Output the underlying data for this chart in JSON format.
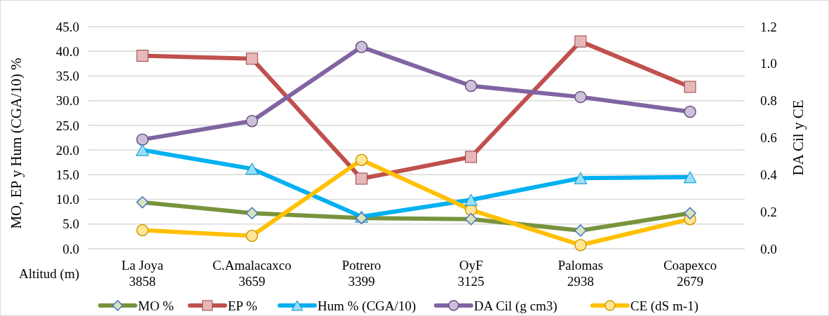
{
  "chart_data": {
    "type": "line",
    "categories": [
      "La Joya\n3858",
      "C.Amalacaxco\n3659",
      "Potrero\n3399",
      "OyF\n3125",
      "Palomas\n2938",
      "Coapexco\n2679"
    ],
    "xlabel": "Altitud (m)",
    "ylabel": "MO, EP y Hum (CGA/10) %",
    "y2label": "DA Cil y CE",
    "ylim": [
      0,
      45
    ],
    "yticks": [
      {
        "value": 0,
        "label": "0.0"
      },
      {
        "value": 5,
        "label": "5.0"
      },
      {
        "value": 10,
        "label": "10.0"
      },
      {
        "value": 15,
        "label": "15.0"
      },
      {
        "value": 20,
        "label": "20.0"
      },
      {
        "value": 25,
        "label": "25.0"
      },
      {
        "value": 30,
        "label": "30.0"
      },
      {
        "value": 35,
        "label": "35.0"
      },
      {
        "value": 40,
        "label": "40.0"
      },
      {
        "value": 45,
        "label": "45.0"
      }
    ],
    "y2lim": [
      0,
      1.2
    ],
    "y2ticks": [
      {
        "value": 0,
        "label": "0.0"
      },
      {
        "value": 0.2,
        "label": "0.2"
      },
      {
        "value": 0.4,
        "label": "0.4"
      },
      {
        "value": 0.6,
        "label": "0.6"
      },
      {
        "value": 0.8,
        "label": "0.8"
      },
      {
        "value": 1,
        "label": "1.0"
      },
      {
        "value": 1.2,
        "label": "1.2"
      }
    ],
    "grid": "y",
    "legend": "bottom",
    "line_style": "solid",
    "series": [
      {
        "name": "MO %",
        "color": "#77933c",
        "marker": "diamond",
        "values": [
          9.4,
          7.2,
          6.2,
          6.0,
          3.7,
          7.2
        ]
      },
      {
        "name": "EP %",
        "color": "#c0504d",
        "marker": "square",
        "values": [
          39.1,
          38.5,
          14.2,
          18.6,
          42.0,
          32.8
        ]
      },
      {
        "name": "Hum % (CGA/10)",
        "color": "#00b0f0",
        "marker": "triangle",
        "values": [
          20.0,
          16.2,
          6.5,
          9.9,
          14.3,
          14.5
        ]
      },
      {
        "name": "DA Cil (g cm3)",
        "color": "#8064a2",
        "marker": "circle",
        "axis": "y2",
        "values": [
          0.59,
          0.69,
          1.09,
          0.88,
          0.82,
          0.74
        ]
      },
      {
        "name": "CE (dS m-1)",
        "color": "#ffc000",
        "marker": "circle",
        "axis": "y2",
        "values": [
          0.1,
          0.07,
          0.48,
          0.21,
          0.02,
          0.16
        ]
      }
    ]
  }
}
